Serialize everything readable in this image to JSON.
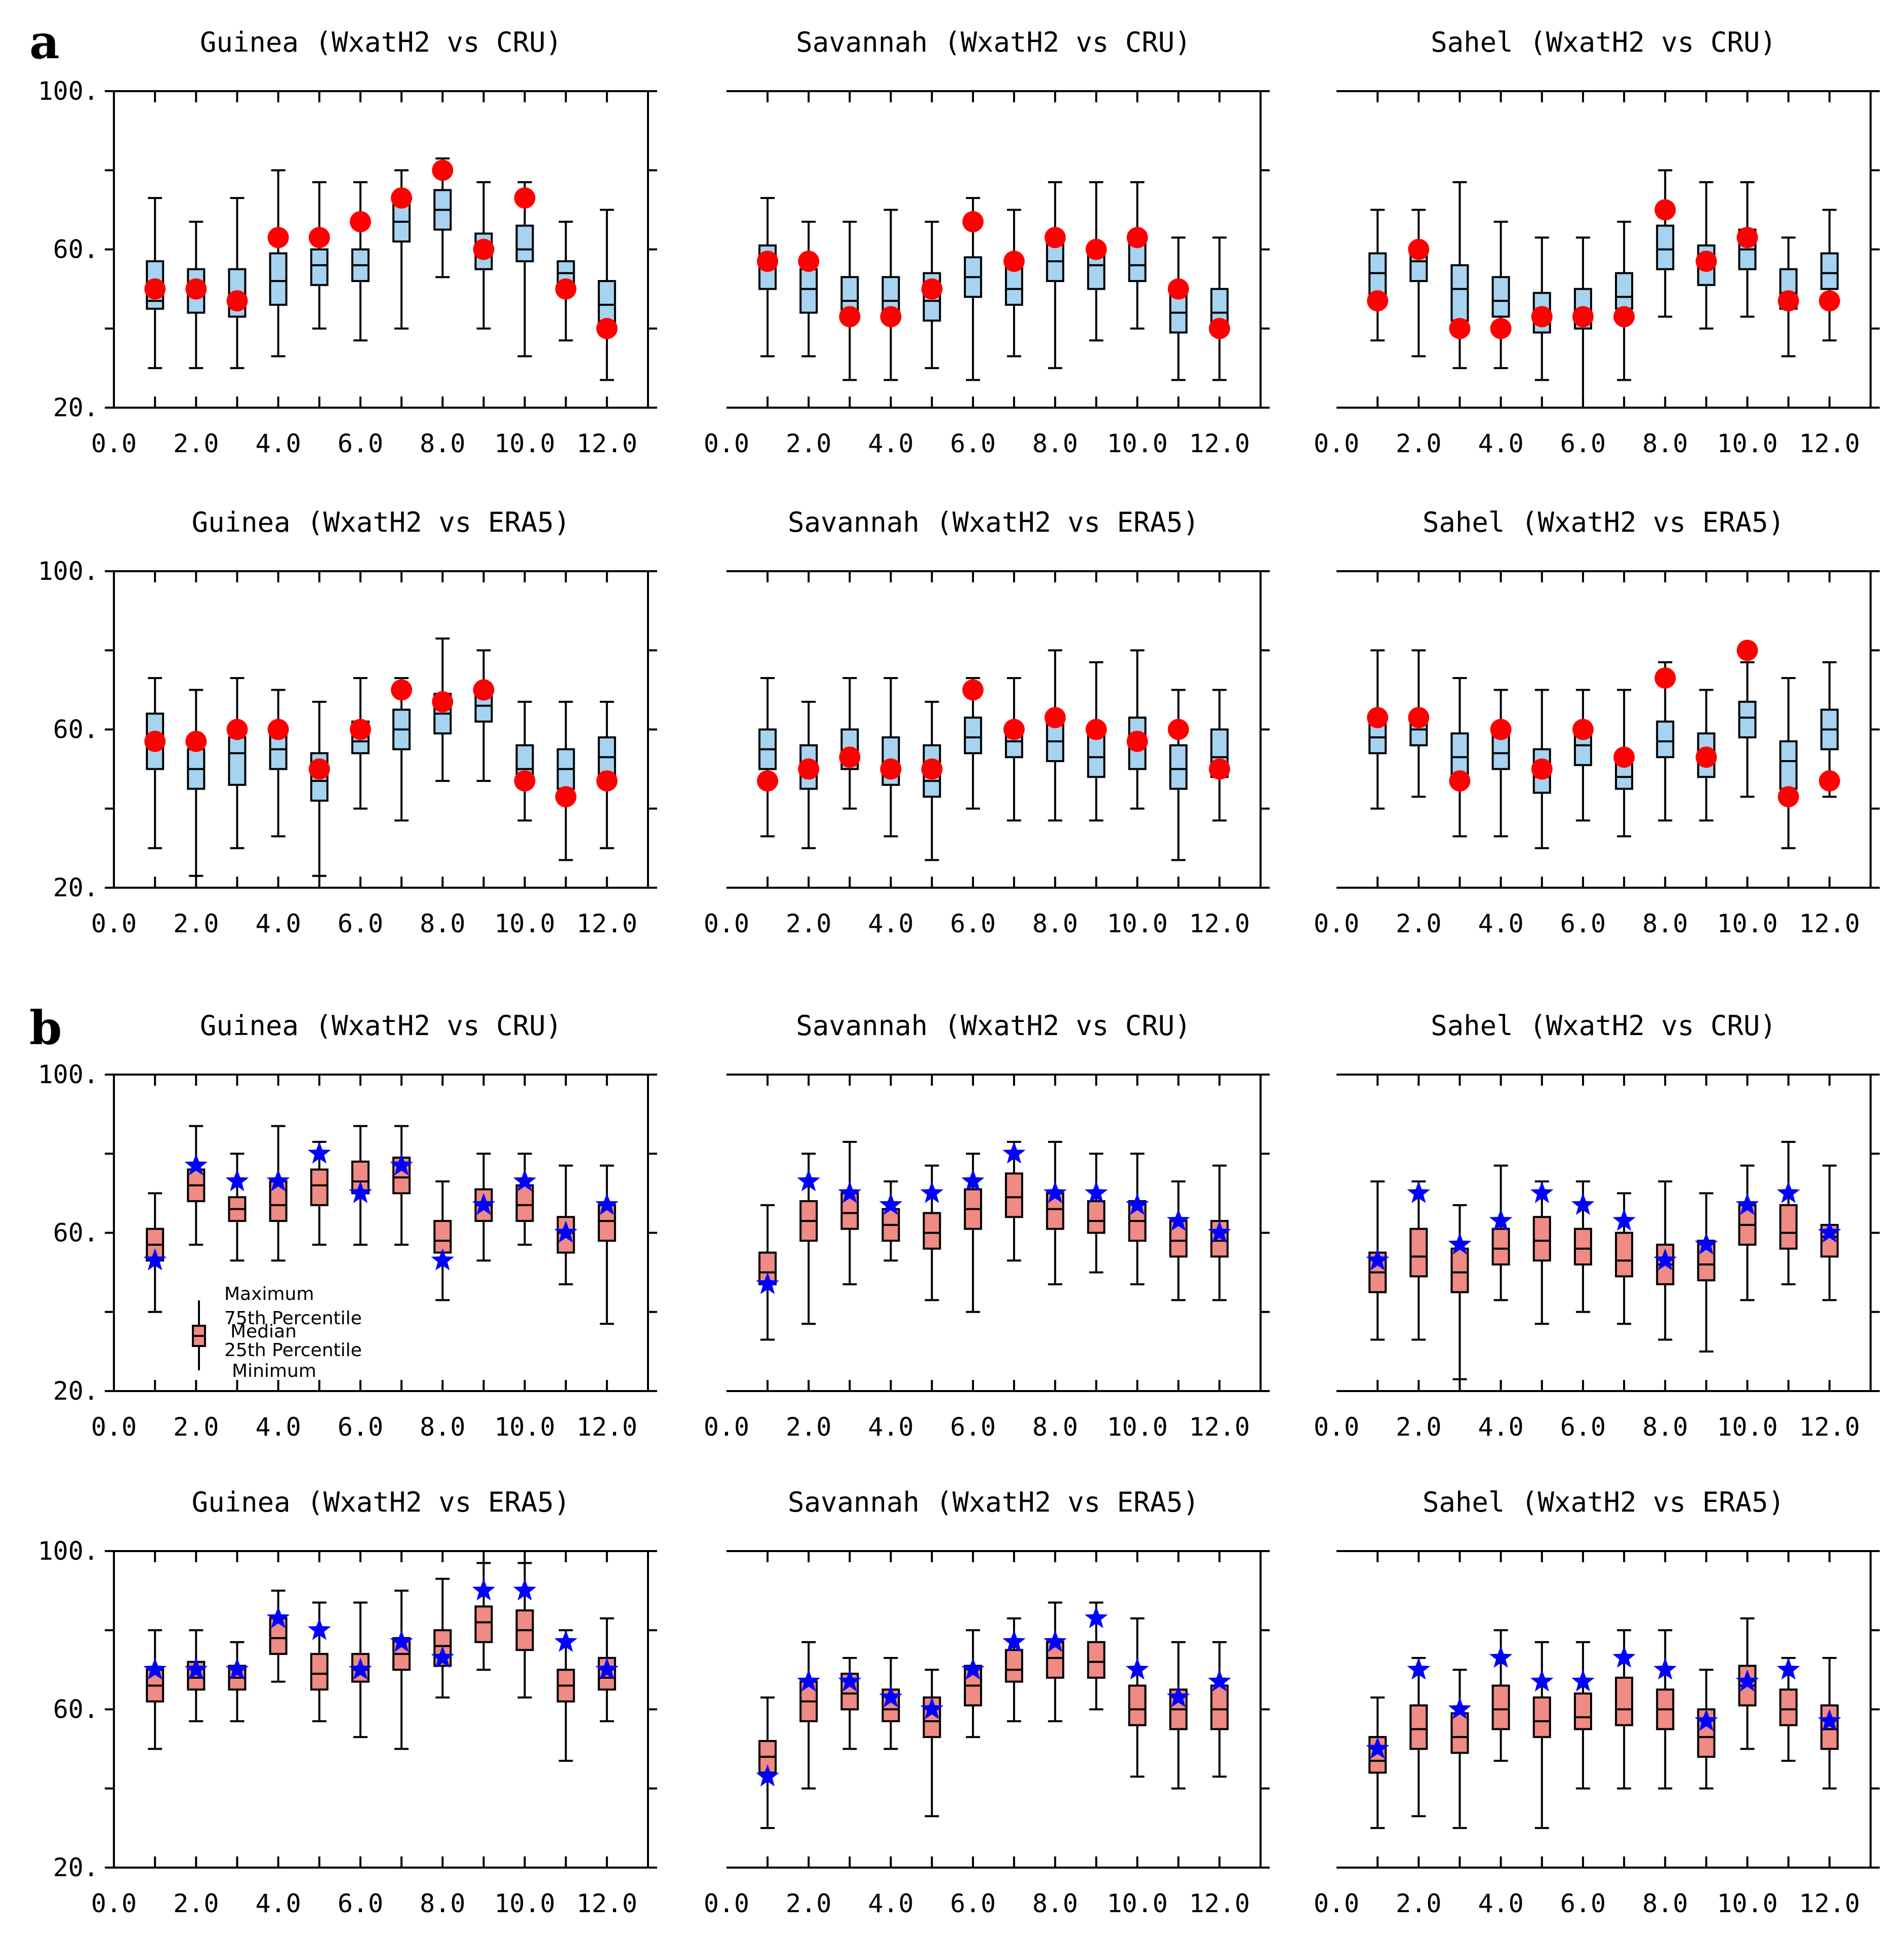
{
  "panel_labels": [
    "a",
    "b"
  ],
  "legend": {
    "maximum": "Maximum",
    "p75": "75th Percentile",
    "median": "Median",
    "p25": "25th Percentile",
    "minimum": "Minimum"
  },
  "colors": {
    "box_a": "#a6d3ef",
    "box_b": "#ef8a84",
    "marker_a": "#ff0000",
    "marker_b": "#0000ff"
  },
  "chart_data": [
    {
      "type": "boxplot",
      "group": "a",
      "marker": "circle",
      "title": "Guinea (WxatH2 vs CRU)",
      "xlim": [
        0,
        13
      ],
      "ylim": [
        20,
        100
      ],
      "xticklabels": [
        "0.0",
        "2.0",
        "4.0",
        "6.0",
        "8.0",
        "10.0",
        "12.0"
      ],
      "yticklabels": [
        "20.",
        "60.",
        "100."
      ],
      "months": [
        1,
        2,
        3,
        4,
        5,
        6,
        7,
        8,
        9,
        10,
        11,
        12
      ],
      "min": [
        30,
        30,
        30,
        33,
        40,
        37,
        40,
        53,
        40,
        33,
        37,
        27
      ],
      "q1": [
        45,
        44,
        43,
        46,
        51,
        52,
        62,
        65,
        55,
        57,
        50,
        40
      ],
      "median": [
        47,
        49,
        47,
        52,
        56,
        56,
        67,
        70,
        60,
        60,
        54,
        46
      ],
      "q3": [
        57,
        55,
        55,
        59,
        60,
        60,
        74,
        75,
        64,
        66,
        57,
        52
      ],
      "max": [
        73,
        67,
        73,
        80,
        77,
        77,
        80,
        83,
        77,
        77,
        67,
        70
      ],
      "obs": [
        50,
        50,
        47,
        63,
        63,
        67,
        73,
        80,
        60,
        73,
        50,
        40
      ]
    },
    {
      "type": "boxplot",
      "group": "a",
      "marker": "circle",
      "title": "Savannah (WxatH2 vs CRU)",
      "xlim": [
        0,
        13
      ],
      "ylim": [
        20,
        100
      ],
      "xticklabels": [
        "0.0",
        "2.0",
        "4.0",
        "6.0",
        "8.0",
        "10.0",
        "12.0"
      ],
      "yticklabels": [
        "20.",
        "60.",
        "100."
      ],
      "months": [
        1,
        2,
        3,
        4,
        5,
        6,
        7,
        8,
        9,
        10,
        11,
        12
      ],
      "min": [
        33,
        33,
        27,
        27,
        30,
        27,
        33,
        30,
        37,
        40,
        27,
        27
      ],
      "q1": [
        50,
        44,
        43,
        43,
        42,
        48,
        46,
        52,
        50,
        52,
        39,
        39
      ],
      "median": [
        56,
        50,
        47,
        47,
        47,
        53,
        50,
        57,
        56,
        56,
        44,
        44
      ],
      "q3": [
        61,
        55,
        53,
        53,
        54,
        58,
        56,
        62,
        61,
        62,
        49,
        50
      ],
      "max": [
        73,
        67,
        67,
        70,
        67,
        73,
        70,
        77,
        77,
        77,
        63,
        63
      ],
      "obs": [
        57,
        57,
        43,
        43,
        50,
        67,
        57,
        63,
        60,
        63,
        50,
        40
      ]
    },
    {
      "type": "boxplot",
      "group": "a",
      "marker": "circle",
      "title": "Sahel (WxatH2 vs CRU)",
      "xlim": [
        0,
        13
      ],
      "ylim": [
        20,
        100
      ],
      "xticklabels": [
        "0.0",
        "2.0",
        "4.0",
        "6.0",
        "8.0",
        "10.0",
        "12.0"
      ],
      "yticklabels": [
        "20.",
        "60.",
        "100."
      ],
      "months": [
        1,
        2,
        3,
        4,
        5,
        6,
        7,
        8,
        9,
        10,
        11,
        12
      ],
      "min": [
        37,
        33,
        30,
        30,
        27,
        20,
        27,
        43,
        40,
        43,
        33,
        37
      ],
      "q1": [
        48,
        52,
        42,
        43,
        39,
        40,
        45,
        55,
        51,
        55,
        45,
        50
      ],
      "median": [
        54,
        57,
        50,
        47,
        43,
        44,
        48,
        60,
        56,
        60,
        49,
        54
      ],
      "q3": [
        59,
        61,
        56,
        53,
        49,
        50,
        54,
        66,
        61,
        65,
        55,
        59
      ],
      "max": [
        70,
        70,
        77,
        67,
        63,
        63,
        67,
        80,
        77,
        77,
        63,
        70
      ],
      "obs": [
        47,
        60,
        40,
        40,
        43,
        43,
        43,
        70,
        57,
        63,
        47,
        47
      ]
    },
    {
      "type": "boxplot",
      "group": "a",
      "marker": "circle",
      "title": "Guinea (WxatH2 vs ERA5)",
      "xlim": [
        0,
        13
      ],
      "ylim": [
        20,
        100
      ],
      "xticklabels": [
        "0.0",
        "2.0",
        "4.0",
        "6.0",
        "8.0",
        "10.0",
        "12.0"
      ],
      "yticklabels": [
        "20.",
        "60.",
        "100."
      ],
      "months": [
        1,
        2,
        3,
        4,
        5,
        6,
        7,
        8,
        9,
        10,
        11,
        12
      ],
      "min": [
        30,
        23,
        30,
        33,
        23,
        40,
        37,
        47,
        47,
        37,
        27,
        30
      ],
      "q1": [
        50,
        45,
        46,
        50,
        42,
        54,
        55,
        59,
        62,
        47,
        45,
        48
      ],
      "median": [
        57,
        50,
        54,
        55,
        47,
        57,
        60,
        64,
        66,
        50,
        50,
        53
      ],
      "q3": [
        64,
        55,
        58,
        59,
        54,
        62,
        65,
        69,
        70,
        56,
        55,
        58
      ],
      "max": [
        73,
        70,
        73,
        70,
        67,
        73,
        73,
        83,
        80,
        67,
        67,
        67
      ],
      "obs": [
        57,
        57,
        60,
        60,
        50,
        60,
        70,
        67,
        70,
        47,
        43,
        47
      ]
    },
    {
      "type": "boxplot",
      "group": "a",
      "marker": "circle",
      "title": "Savannah (WxatH2 vs ERA5)",
      "xlim": [
        0,
        13
      ],
      "ylim": [
        20,
        100
      ],
      "xticklabels": [
        "0.0",
        "2.0",
        "4.0",
        "6.0",
        "8.0",
        "10.0",
        "12.0"
      ],
      "yticklabels": [
        "20.",
        "60.",
        "100."
      ],
      "months": [
        1,
        2,
        3,
        4,
        5,
        6,
        7,
        8,
        9,
        10,
        11,
        12
      ],
      "min": [
        33,
        30,
        40,
        33,
        27,
        40,
        37,
        37,
        37,
        40,
        27,
        37
      ],
      "q1": [
        50,
        45,
        50,
        46,
        43,
        54,
        53,
        52,
        48,
        50,
        45,
        48
      ],
      "median": [
        55,
        50,
        54,
        50,
        47,
        58,
        57,
        57,
        53,
        56,
        50,
        53
      ],
      "q3": [
        60,
        56,
        60,
        58,
        56,
        63,
        61,
        64,
        59,
        63,
        56,
        60
      ],
      "max": [
        73,
        67,
        73,
        73,
        67,
        73,
        73,
        80,
        77,
        80,
        70,
        70
      ],
      "obs": [
        47,
        50,
        53,
        50,
        50,
        70,
        60,
        63,
        60,
        57,
        60,
        50
      ]
    },
    {
      "type": "boxplot",
      "group": "a",
      "marker": "circle",
      "title": "Sahel (WxatH2 vs ERA5)",
      "xlim": [
        0,
        13
      ],
      "ylim": [
        20,
        100
      ],
      "xticklabels": [
        "0.0",
        "2.0",
        "4.0",
        "6.0",
        "8.0",
        "10.0",
        "12.0"
      ],
      "yticklabels": [
        "20.",
        "60.",
        "100."
      ],
      "months": [
        1,
        2,
        3,
        4,
        5,
        6,
        7,
        8,
        9,
        10,
        11,
        12
      ],
      "min": [
        40,
        43,
        33,
        33,
        30,
        37,
        33,
        37,
        37,
        43,
        30,
        43
      ],
      "q1": [
        54,
        56,
        48,
        50,
        44,
        51,
        45,
        53,
        48,
        58,
        45,
        55
      ],
      "median": [
        58,
        60,
        53,
        54,
        48,
        56,
        48,
        57,
        52,
        63,
        52,
        60
      ],
      "q3": [
        63,
        64,
        59,
        59,
        55,
        60,
        54,
        62,
        59,
        67,
        57,
        65
      ],
      "max": [
        80,
        80,
        73,
        70,
        70,
        70,
        70,
        77,
        70,
        77,
        73,
        77
      ],
      "obs": [
        63,
        63,
        47,
        60,
        50,
        60,
        53,
        73,
        53,
        80,
        43,
        47
      ]
    },
    {
      "type": "boxplot",
      "group": "b",
      "marker": "star",
      "title": "Guinea (WxatH2 vs CRU)",
      "xlim": [
        0,
        13
      ],
      "ylim": [
        20,
        100
      ],
      "xticklabels": [
        "0.0",
        "2.0",
        "4.0",
        "6.0",
        "8.0",
        "10.0",
        "12.0"
      ],
      "yticklabels": [
        "20.",
        "60.",
        "100."
      ],
      "months": [
        1,
        2,
        3,
        4,
        5,
        6,
        7,
        8,
        9,
        10,
        11,
        12
      ],
      "min": [
        40,
        57,
        53,
        53,
        57,
        57,
        57,
        43,
        53,
        57,
        47,
        37
      ],
      "q1": [
        53,
        68,
        63,
        63,
        67,
        70,
        70,
        55,
        63,
        63,
        55,
        58
      ],
      "median": [
        57,
        72,
        66,
        67,
        72,
        73,
        74,
        58,
        67,
        67,
        60,
        63
      ],
      "q3": [
        61,
        76,
        69,
        73,
        76,
        78,
        79,
        63,
        71,
        72,
        64,
        67
      ],
      "max": [
        70,
        87,
        80,
        87,
        83,
        87,
        87,
        73,
        80,
        80,
        77,
        77
      ],
      "obs": [
        53,
        77,
        73,
        73,
        80,
        70,
        77,
        53,
        67,
        73,
        60,
        67
      ]
    },
    {
      "type": "boxplot",
      "group": "b",
      "marker": "star",
      "title": "Savannah (WxatH2 vs CRU)",
      "xlim": [
        0,
        13
      ],
      "ylim": [
        20,
        100
      ],
      "xticklabels": [
        "0.0",
        "2.0",
        "4.0",
        "6.0",
        "8.0",
        "10.0",
        "12.0"
      ],
      "yticklabels": [
        "20.",
        "60.",
        "100."
      ],
      "months": [
        1,
        2,
        3,
        4,
        5,
        6,
        7,
        8,
        9,
        10,
        11,
        12
      ],
      "min": [
        33,
        37,
        47,
        53,
        43,
        40,
        53,
        47,
        50,
        47,
        43,
        43
      ],
      "q1": [
        47,
        58,
        61,
        58,
        56,
        61,
        64,
        61,
        60,
        58,
        54,
        54
      ],
      "median": [
        50,
        63,
        65,
        62,
        60,
        66,
        69,
        66,
        63,
        63,
        58,
        58
      ],
      "q3": [
        55,
        68,
        70,
        66,
        65,
        71,
        75,
        70,
        68,
        68,
        63,
        63
      ],
      "max": [
        67,
        80,
        83,
        73,
        77,
        80,
        83,
        83,
        80,
        80,
        73,
        77
      ],
      "obs": [
        47,
        73,
        70,
        67,
        70,
        73,
        80,
        70,
        70,
        67,
        63,
        60
      ]
    },
    {
      "type": "boxplot",
      "group": "b",
      "marker": "star",
      "title": "Sahel (WxatH2 vs CRU)",
      "xlim": [
        0,
        13
      ],
      "ylim": [
        20,
        100
      ],
      "xticklabels": [
        "0.0",
        "2.0",
        "4.0",
        "6.0",
        "8.0",
        "10.0",
        "12.0"
      ],
      "yticklabels": [
        "20.",
        "60.",
        "100."
      ],
      "months": [
        1,
        2,
        3,
        4,
        5,
        6,
        7,
        8,
        9,
        10,
        11,
        12
      ],
      "min": [
        33,
        33,
        23,
        43,
        37,
        40,
        37,
        33,
        30,
        43,
        47,
        43
      ],
      "q1": [
        45,
        49,
        45,
        52,
        53,
        52,
        49,
        47,
        48,
        57,
        56,
        54
      ],
      "median": [
        50,
        54,
        50,
        56,
        58,
        56,
        53,
        52,
        52,
        62,
        60,
        59
      ],
      "q3": [
        55,
        61,
        56,
        61,
        64,
        61,
        60,
        57,
        58,
        67,
        67,
        62
      ],
      "max": [
        73,
        73,
        67,
        77,
        73,
        73,
        70,
        73,
        70,
        77,
        83,
        77
      ],
      "obs": [
        53,
        70,
        57,
        63,
        70,
        67,
        63,
        53,
        57,
        67,
        70,
        60
      ]
    },
    {
      "type": "boxplot",
      "group": "b",
      "marker": "star",
      "title": "Guinea (WxatH2 vs ERA5)",
      "xlim": [
        0,
        13
      ],
      "ylim": [
        20,
        100
      ],
      "xticklabels": [
        "0.0",
        "2.0",
        "4.0",
        "6.0",
        "8.0",
        "10.0",
        "12.0"
      ],
      "yticklabels": [
        "20.",
        "60.",
        "100."
      ],
      "months": [
        1,
        2,
        3,
        4,
        5,
        6,
        7,
        8,
        9,
        10,
        11,
        12
      ],
      "min": [
        50,
        57,
        57,
        67,
        57,
        53,
        50,
        63,
        70,
        63,
        47,
        57
      ],
      "q1": [
        62,
        65,
        65,
        74,
        65,
        67,
        70,
        71,
        77,
        75,
        62,
        65
      ],
      "median": [
        66,
        68,
        68,
        78,
        69,
        70,
        74,
        76,
        82,
        80,
        66,
        68
      ],
      "q3": [
        70,
        72,
        71,
        83,
        74,
        74,
        78,
        80,
        86,
        85,
        70,
        73
      ],
      "max": [
        80,
        80,
        77,
        90,
        87,
        87,
        90,
        93,
        97,
        97,
        80,
        83
      ],
      "obs": [
        70,
        70,
        70,
        83,
        80,
        70,
        77,
        73,
        90,
        90,
        77,
        70
      ]
    },
    {
      "type": "boxplot",
      "group": "b",
      "marker": "star",
      "title": "Savannah (WxatH2 vs ERA5)",
      "xlim": [
        0,
        13
      ],
      "ylim": [
        20,
        100
      ],
      "xticklabels": [
        "0.0",
        "2.0",
        "4.0",
        "6.0",
        "8.0",
        "10.0",
        "12.0"
      ],
      "yticklabels": [
        "20.",
        "60.",
        "100."
      ],
      "months": [
        1,
        2,
        3,
        4,
        5,
        6,
        7,
        8,
        9,
        10,
        11,
        12
      ],
      "min": [
        30,
        40,
        50,
        50,
        33,
        53,
        57,
        57,
        60,
        43,
        40,
        43
      ],
      "q1": [
        44,
        57,
        60,
        57,
        53,
        61,
        67,
        68,
        68,
        56,
        55,
        55
      ],
      "median": [
        48,
        62,
        64,
        60,
        57,
        66,
        70,
        73,
        72,
        60,
        60,
        60
      ],
      "q3": [
        52,
        67,
        69,
        65,
        63,
        71,
        75,
        77,
        77,
        66,
        65,
        66
      ],
      "max": [
        63,
        77,
        73,
        73,
        70,
        80,
        83,
        87,
        87,
        83,
        77,
        77
      ],
      "obs": [
        43,
        67,
        67,
        63,
        60,
        70,
        77,
        77,
        83,
        70,
        63,
        67
      ]
    },
    {
      "type": "boxplot",
      "group": "b",
      "marker": "star",
      "title": "Sahel (WxatH2 vs ERA5)",
      "xlim": [
        0,
        13
      ],
      "ylim": [
        20,
        100
      ],
      "xticklabels": [
        "0.0",
        "2.0",
        "4.0",
        "6.0",
        "8.0",
        "10.0",
        "12.0"
      ],
      "yticklabels": [
        "20.",
        "60.",
        "100."
      ],
      "months": [
        1,
        2,
        3,
        4,
        5,
        6,
        7,
        8,
        9,
        10,
        11,
        12
      ],
      "min": [
        30,
        33,
        30,
        47,
        30,
        40,
        40,
        40,
        40,
        50,
        47,
        40
      ],
      "q1": [
        44,
        50,
        49,
        55,
        53,
        55,
        56,
        55,
        48,
        61,
        56,
        50
      ],
      "median": [
        47,
        55,
        53,
        60,
        57,
        58,
        60,
        60,
        53,
        66,
        60,
        55
      ],
      "q3": [
        53,
        61,
        59,
        66,
        63,
        64,
        68,
        65,
        60,
        71,
        65,
        61
      ],
      "max": [
        63,
        73,
        70,
        80,
        77,
        77,
        80,
        80,
        70,
        83,
        73,
        73
      ],
      "obs": [
        50,
        70,
        60,
        73,
        67,
        67,
        73,
        70,
        57,
        67,
        70,
        57
      ]
    }
  ]
}
